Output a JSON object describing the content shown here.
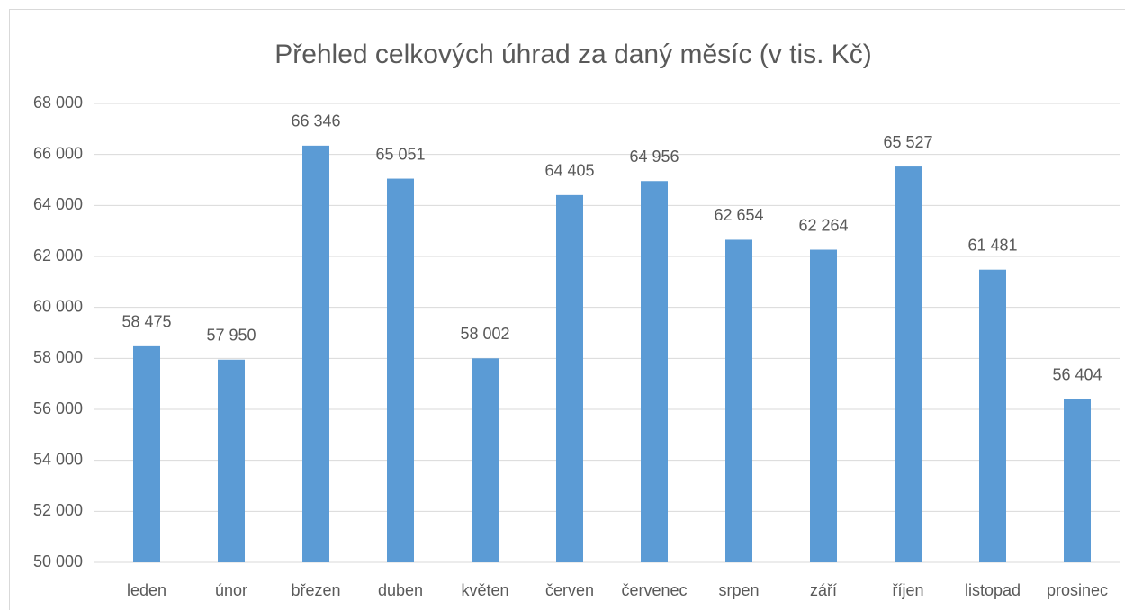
{
  "chart_data": {
    "type": "bar",
    "title": "Přehled celkových úhrad za daný měsíc (v tis. Kč)",
    "categories": [
      "leden",
      "únor",
      "březen",
      "duben",
      "květen",
      "červen",
      "červenec",
      "srpen",
      "září",
      "říjen",
      "listopad",
      "prosinec"
    ],
    "values": [
      58475,
      57950,
      66346,
      65051,
      58002,
      64405,
      64956,
      62654,
      62264,
      65527,
      61481,
      56404
    ],
    "value_labels": [
      "58 475",
      "57 950",
      "66 346",
      "65 051",
      "58 002",
      "64 405",
      "64 956",
      "62 654",
      "62 264",
      "65 527",
      "61 481",
      "56 404"
    ],
    "color": "#5b9bd5",
    "ylim": [
      50000,
      68000
    ],
    "yticks": [
      {
        "value": 50000,
        "label": "50 000"
      },
      {
        "value": 52000,
        "label": "52 000"
      },
      {
        "value": 54000,
        "label": "54 000"
      },
      {
        "value": 56000,
        "label": "56 000"
      },
      {
        "value": 58000,
        "label": "58 000"
      },
      {
        "value": 60000,
        "label": "60 000"
      },
      {
        "value": 62000,
        "label": "62 000"
      },
      {
        "value": 64000,
        "label": "64 000"
      },
      {
        "value": 66000,
        "label": "66 000"
      },
      {
        "value": 68000,
        "label": "68 000"
      }
    ],
    "grid": true
  }
}
